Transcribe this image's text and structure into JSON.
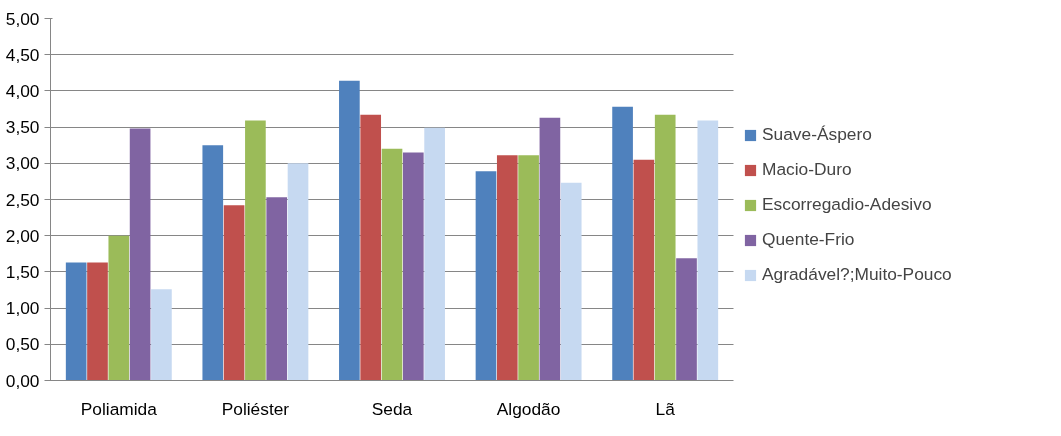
{
  "chart_data": {
    "type": "bar",
    "categories": [
      "Poliamida",
      "Poliéster",
      "Seda",
      "Algodão",
      "Lã"
    ],
    "series": [
      {
        "name": "Suave-Áspero",
        "color": "#4f81bd",
        "values": [
          1.63,
          3.25,
          4.14,
          2.89,
          3.78
        ]
      },
      {
        "name": "Macio-Duro",
        "color": "#c0504d",
        "values": [
          1.63,
          2.42,
          3.67,
          3.11,
          3.05
        ]
      },
      {
        "name": "Escorregadio-Adesivo",
        "color": "#9bbb59",
        "values": [
          2.0,
          3.59,
          3.2,
          3.11,
          3.67
        ]
      },
      {
        "name": "Quente-Frio",
        "color": "#8064a2",
        "values": [
          3.48,
          2.53,
          3.15,
          3.63,
          1.69
        ]
      },
      {
        "name": "Agradável?;Muito-Pouco",
        "color": "#c6d9f1",
        "values": [
          1.26,
          3.0,
          3.49,
          2.73,
          3.59
        ]
      }
    ],
    "ylim": [
      0,
      5
    ],
    "yticks": [
      {
        "value": 0,
        "label": "0,00"
      },
      {
        "value": 0.5,
        "label": "0,50"
      },
      {
        "value": 1,
        "label": "1,00"
      },
      {
        "value": 1.5,
        "label": "1,50"
      },
      {
        "value": 2,
        "label": "2,00"
      },
      {
        "value": 2.5,
        "label": "2,50"
      },
      {
        "value": 3,
        "label": "3,00"
      },
      {
        "value": 3.5,
        "label": "3,50"
      },
      {
        "value": 4,
        "label": "4,00"
      },
      {
        "value": 4.5,
        "label": "4,50"
      },
      {
        "value": 5,
        "label": "5,00"
      }
    ],
    "grid": "y",
    "legend": "right"
  }
}
